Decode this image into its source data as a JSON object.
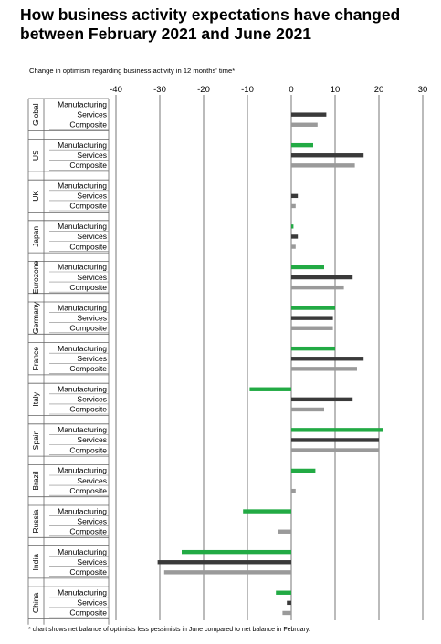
{
  "title": "How business activity expectations have changed between February 2021 and June 2021",
  "chart_data": {
    "type": "bar",
    "orientation": "horizontal",
    "subtitle": "Change in optimism regarding business activity in 12 months' time*",
    "footnote": "* chart shows net balance of optimists less pessimists in June compared to net balance in February.",
    "xlim": [
      -40,
      30
    ],
    "x_ticks": [
      -40,
      -30,
      -20,
      -10,
      0,
      10,
      20,
      30
    ],
    "x_tick_labels": [
      "-40",
      "-30",
      "-20",
      "-10",
      "0",
      "10",
      "20",
      "30"
    ],
    "grid": true,
    "sectors": [
      "Manufacturing",
      "Services",
      "Composite"
    ],
    "colors": {
      "Manufacturing": "#22aa44",
      "Services": "#3a3a3a",
      "Composite": "#9a9a9a"
    },
    "groups": [
      {
        "region": "Global",
        "values": [
          0,
          8,
          6
        ]
      },
      {
        "region": "US",
        "values": [
          5,
          16.5,
          14.5
        ]
      },
      {
        "region": "UK",
        "values": [
          0,
          1.5,
          1
        ]
      },
      {
        "region": "Japan",
        "values": [
          0.5,
          1.5,
          1
        ]
      },
      {
        "region": "Eurozone",
        "values": [
          7.5,
          14,
          12
        ]
      },
      {
        "region": "Germany",
        "values": [
          10,
          9.5,
          9.5
        ]
      },
      {
        "region": "France",
        "values": [
          10,
          16.5,
          15
        ]
      },
      {
        "region": "Italy",
        "values": [
          -9.5,
          14,
          7.5
        ]
      },
      {
        "region": "Spain",
        "values": [
          21,
          20,
          20
        ]
      },
      {
        "region": "Brazil",
        "values": [
          5.5,
          0,
          1
        ]
      },
      {
        "region": "Russia",
        "values": [
          -11,
          0,
          -3
        ]
      },
      {
        "region": "India",
        "values": [
          -25,
          -30.5,
          -29
        ]
      },
      {
        "region": "China",
        "values": [
          -3.5,
          -1,
          -2
        ]
      }
    ]
  }
}
